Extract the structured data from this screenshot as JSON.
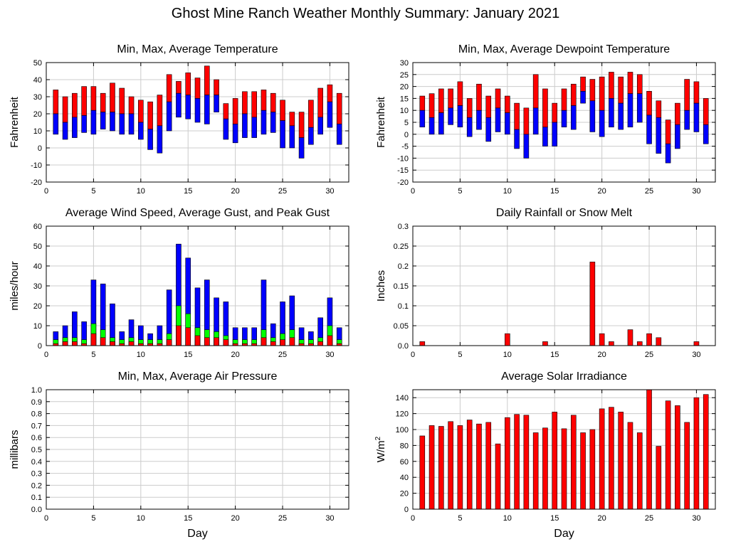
{
  "page": {
    "title": "Ghost Mine Ranch Weather Monthly Summary: January 2021"
  },
  "chart_data": [
    {
      "id": "temperature",
      "type": "bar",
      "style": "floating-range",
      "title": "Min, Max, Average Temperature",
      "xlabel": "",
      "ylabel": "Fahrenheit",
      "xlim": [
        0,
        32
      ],
      "ylim": [
        -20,
        50
      ],
      "xticks": [
        0,
        5,
        10,
        15,
        20,
        25,
        30
      ],
      "yticks": [
        -20,
        -10,
        0,
        10,
        20,
        30,
        40,
        50
      ],
      "grid": true,
      "colors": {
        "max_band": "#ff0000",
        "min_band": "#0000ff"
      },
      "x": [
        1,
        2,
        3,
        4,
        5,
        6,
        7,
        8,
        9,
        10,
        11,
        12,
        13,
        14,
        15,
        16,
        17,
        18,
        19,
        20,
        21,
        22,
        23,
        24,
        25,
        26,
        27,
        28,
        29,
        30,
        31
      ],
      "series": [
        {
          "key": "min",
          "values": [
            8,
            5,
            6,
            9,
            8,
            11,
            10,
            8,
            8,
            5,
            -1,
            -3,
            10,
            18,
            17,
            15,
            14,
            21,
            5,
            3,
            6,
            6,
            8,
            9,
            0,
            0,
            -6,
            2,
            8,
            12,
            2
          ]
        },
        {
          "key": "avg",
          "values": [
            20,
            15,
            18,
            19,
            22,
            21,
            21,
            20,
            20,
            15,
            11,
            13,
            27,
            32,
            31,
            29,
            31,
            31,
            17,
            14,
            20,
            18,
            22,
            21,
            16,
            13,
            6,
            12,
            18,
            27,
            14
          ]
        },
        {
          "key": "max",
          "values": [
            34,
            30,
            32,
            36,
            36,
            32,
            38,
            35,
            30,
            28,
            27,
            31,
            43,
            39,
            44,
            41,
            48,
            40,
            26,
            29,
            33,
            33,
            34,
            32,
            28,
            21,
            21,
            28,
            35,
            37,
            32
          ]
        }
      ]
    },
    {
      "id": "dewpoint",
      "type": "bar",
      "style": "floating-range",
      "title": "Min, Max, Average Dewpoint Temperature",
      "xlabel": "",
      "ylabel": "Fahrenheit",
      "xlim": [
        0,
        32
      ],
      "ylim": [
        -20,
        30
      ],
      "xticks": [
        0,
        5,
        10,
        15,
        20,
        25,
        30
      ],
      "yticks": [
        -20,
        -15,
        -10,
        -5,
        0,
        5,
        10,
        15,
        20,
        25,
        30
      ],
      "grid": true,
      "colors": {
        "max_band": "#ff0000",
        "min_band": "#0000ff"
      },
      "x": [
        1,
        2,
        3,
        4,
        5,
        6,
        7,
        8,
        9,
        10,
        11,
        12,
        13,
        14,
        15,
        16,
        17,
        18,
        19,
        20,
        21,
        22,
        23,
        24,
        25,
        26,
        27,
        28,
        29,
        30,
        31
      ],
      "series": [
        {
          "key": "min",
          "values": [
            3,
            0,
            0,
            4,
            3,
            -1,
            2,
            -3,
            1,
            0,
            -6,
            -10,
            0,
            -5,
            -5,
            3,
            2,
            13,
            1,
            -1,
            3,
            2,
            3,
            5,
            -4,
            -8,
            -12,
            -6,
            2,
            1,
            -4
          ]
        },
        {
          "key": "avg",
          "values": [
            10,
            7,
            9,
            11,
            12,
            7,
            10,
            7,
            11,
            9,
            2,
            0,
            11,
            3,
            5,
            10,
            12,
            18,
            14,
            10,
            15,
            13,
            17,
            17,
            8,
            7,
            -4,
            4,
            10,
            13,
            4
          ]
        },
        {
          "key": "max",
          "values": [
            16,
            17,
            19,
            19,
            22,
            15,
            21,
            16,
            19,
            16,
            13,
            11,
            25,
            19,
            13,
            19,
            21,
            24,
            23,
            24,
            26,
            24,
            26,
            25,
            18,
            14,
            6,
            13,
            23,
            22,
            15
          ]
        }
      ]
    },
    {
      "id": "wind",
      "type": "bar",
      "style": "overlaid",
      "title": "Average Wind Speed, Average Gust, and Peak Gust",
      "xlabel": "",
      "ylabel": "miles/hour",
      "xlim": [
        0,
        32
      ],
      "ylim": [
        0,
        60
      ],
      "xticks": [
        0,
        5,
        10,
        15,
        20,
        25,
        30
      ],
      "yticks": [
        0,
        10,
        20,
        30,
        40,
        50,
        60
      ],
      "grid": true,
      "x": [
        1,
        2,
        3,
        4,
        5,
        6,
        7,
        8,
        9,
        10,
        11,
        12,
        13,
        14,
        15,
        16,
        17,
        18,
        19,
        20,
        21,
        22,
        23,
        24,
        25,
        26,
        27,
        28,
        29,
        30,
        31
      ],
      "series": [
        {
          "key": "peak_gust",
          "color": "#0000ff",
          "values": [
            7,
            10,
            17,
            12,
            33,
            31,
            21,
            7,
            13,
            10,
            6,
            10,
            28,
            51,
            44,
            29,
            33,
            24,
            22,
            9,
            9,
            9,
            33,
            11,
            22,
            25,
            9,
            7,
            14,
            24,
            9
          ]
        },
        {
          "key": "avg_gust",
          "color": "#00ff00",
          "values": [
            3,
            4,
            4,
            3,
            11,
            8,
            4,
            3,
            4,
            3,
            3,
            3,
            6,
            20,
            16,
            9,
            8,
            7,
            5,
            3,
            3,
            3,
            8,
            4,
            6,
            8,
            3,
            3,
            4,
            10,
            3
          ]
        },
        {
          "key": "avg_speed",
          "color": "#ff0000",
          "values": [
            1,
            2,
            2,
            1,
            6,
            4,
            2,
            1,
            2,
            1,
            1,
            1,
            3,
            10,
            9,
            5,
            4,
            4,
            3,
            1,
            1,
            1,
            4,
            2,
            3,
            4,
            1,
            1,
            2,
            5,
            1
          ]
        }
      ]
    },
    {
      "id": "rain",
      "type": "bar",
      "title": "Daily Rainfall or Snow Melt",
      "xlabel": "",
      "ylabel": "Inches",
      "xlim": [
        0,
        32
      ],
      "ylim": [
        0,
        0.3
      ],
      "xticks": [
        0,
        5,
        10,
        15,
        20,
        25,
        30
      ],
      "yticks": [
        0,
        0.05,
        0.1,
        0.15,
        0.2,
        0.25,
        0.3
      ],
      "ytick_labels": [
        "0.0",
        "0.05",
        "0.1",
        "0.15",
        "0.2",
        "0.25",
        "0.3"
      ],
      "grid": true,
      "color": "#ff0000",
      "x": [
        1,
        10,
        14,
        19,
        20,
        21,
        23,
        24,
        25,
        26,
        30
      ],
      "values": [
        0.01,
        0.03,
        0.01,
        0.21,
        0.03,
        0.01,
        0.04,
        0.01,
        0.03,
        0.02,
        0.01
      ]
    },
    {
      "id": "pressure",
      "type": "bar",
      "title": "Min, Max, Average Air Pressure",
      "xlabel": "Day",
      "ylabel": "millibars",
      "xlim": [
        0,
        32
      ],
      "ylim": [
        0,
        1
      ],
      "xticks": [
        0,
        5,
        10,
        15,
        20,
        25,
        30
      ],
      "yticks": [
        0,
        0.1,
        0.2,
        0.3,
        0.4,
        0.5,
        0.6,
        0.7,
        0.8,
        0.9,
        1.0
      ],
      "ytick_labels": [
        "0.0",
        "0.1",
        "0.2",
        "0.3",
        "0.4",
        "0.5",
        "0.6",
        "0.7",
        "0.8",
        "0.9",
        "1.0"
      ],
      "grid": true,
      "x": [],
      "values": []
    },
    {
      "id": "solar",
      "type": "bar",
      "title": "Average Solar Irradiance",
      "xlabel": "Day",
      "ylabel": "W/m",
      "ylabel_sup": "2",
      "xlim": [
        0,
        32
      ],
      "ylim": [
        0,
        150
      ],
      "xticks": [
        0,
        5,
        10,
        15,
        20,
        25,
        30
      ],
      "yticks": [
        0,
        20,
        40,
        60,
        80,
        100,
        120,
        140
      ],
      "grid": true,
      "color": "#ff0000",
      "x": [
        1,
        2,
        3,
        4,
        5,
        6,
        7,
        8,
        9,
        10,
        11,
        12,
        13,
        14,
        15,
        16,
        17,
        18,
        19,
        20,
        21,
        22,
        23,
        24,
        25,
        26,
        27,
        28,
        29,
        30,
        31
      ],
      "values": [
        92,
        105,
        104,
        110,
        105,
        112,
        107,
        109,
        82,
        115,
        119,
        118,
        96,
        102,
        122,
        101,
        118,
        96,
        100,
        126,
        128,
        122,
        109,
        96,
        150,
        79,
        136,
        130,
        109,
        140,
        144
      ]
    }
  ]
}
